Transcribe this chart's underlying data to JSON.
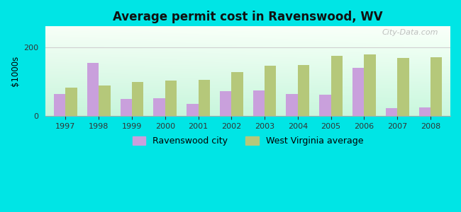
{
  "title": "Average permit cost in Ravenswood, WV",
  "ylabel": "$1000s",
  "years": [
    1997,
    1998,
    1999,
    2000,
    2001,
    2002,
    2003,
    2004,
    2005,
    2006,
    2007,
    2008
  ],
  "city_values": [
    65,
    155,
    50,
    52,
    35,
    72,
    75,
    65,
    62,
    140,
    22,
    25
  ],
  "state_values": [
    82,
    88,
    98,
    103,
    105,
    128,
    145,
    148,
    175,
    178,
    168,
    170
  ],
  "city_color": "#c9a0dc",
  "state_color": "#b5c87a",
  "outer_bg": "#00e5e5",
  "ylim": [
    0,
    260
  ],
  "yticks": [
    0,
    200
  ],
  "grid_color": "#d0d0d0",
  "city_label": "Ravenswood city",
  "state_label": "West Virginia average",
  "bar_width": 0.35,
  "watermark": "City-Data.com"
}
